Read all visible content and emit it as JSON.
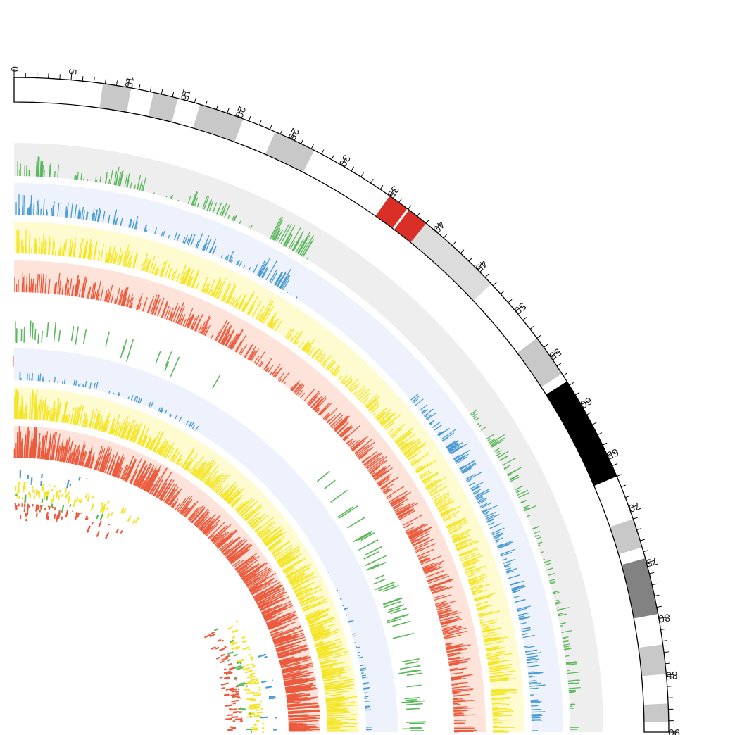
{
  "chart_data": {
    "type": "circos",
    "axis": {
      "start": 0,
      "end": 90,
      "major_step": 5,
      "minor_step": 1,
      "tick_labels": [
        "0",
        "5",
        "10",
        "15",
        "20",
        "25",
        "30",
        "35",
        "40",
        "45",
        "50",
        "55",
        "60",
        "65",
        "70",
        "75",
        "80",
        "85",
        "90"
      ]
    },
    "ideogram_bands": [
      {
        "start": 0.0,
        "end": 7.8,
        "stain": "gneg",
        "color": "#ffffff"
      },
      {
        "start": 7.8,
        "end": 10.3,
        "stain": "gpos25",
        "color": "#c8c8c8"
      },
      {
        "start": 10.3,
        "end": 12.3,
        "stain": "gneg",
        "color": "#ffffff"
      },
      {
        "start": 12.3,
        "end": 14.5,
        "stain": "gpos25",
        "color": "#c8c8c8"
      },
      {
        "start": 14.5,
        "end": 16.5,
        "stain": "gneg",
        "color": "#ffffff"
      },
      {
        "start": 16.5,
        "end": 20.5,
        "stain": "gpos25",
        "color": "#c8c8c8"
      },
      {
        "start": 20.5,
        "end": 23.5,
        "stain": "gneg",
        "color": "#ffffff"
      },
      {
        "start": 23.5,
        "end": 27.3,
        "stain": "gpos25",
        "color": "#c8c8c8"
      },
      {
        "start": 27.3,
        "end": 35.0,
        "stain": "gneg",
        "color": "#ffffff"
      },
      {
        "start": 35.0,
        "end": 37.0,
        "stain": "acen",
        "color": "#d92f27"
      },
      {
        "start": 37.0,
        "end": 39.0,
        "stain": "acen",
        "color": "#d92f27"
      },
      {
        "start": 39.0,
        "end": 46.8,
        "stain": "gvar",
        "color": "#dcdcdc"
      },
      {
        "start": 46.8,
        "end": 53.0,
        "stain": "gneg",
        "color": "#ffffff"
      },
      {
        "start": 53.0,
        "end": 56.8,
        "stain": "gpos25",
        "color": "#c8c8c8"
      },
      {
        "start": 56.8,
        "end": 57.6,
        "stain": "gneg",
        "color": "#ffffff"
      },
      {
        "start": 57.6,
        "end": 67.0,
        "stain": "gpos100",
        "color": "#000000"
      },
      {
        "start": 67.0,
        "end": 71.0,
        "stain": "gneg",
        "color": "#ffffff"
      },
      {
        "start": 71.0,
        "end": 73.6,
        "stain": "gpos25",
        "color": "#c8c8c8"
      },
      {
        "start": 73.6,
        "end": 74.6,
        "stain": "gneg",
        "color": "#ffffff"
      },
      {
        "start": 74.6,
        "end": 79.6,
        "stain": "gpos75",
        "color": "#828282"
      },
      {
        "start": 79.6,
        "end": 82.3,
        "stain": "gneg",
        "color": "#ffffff"
      },
      {
        "start": 82.3,
        "end": 84.9,
        "stain": "gpos25",
        "color": "#c8c8c8"
      },
      {
        "start": 84.9,
        "end": 87.5,
        "stain": "gneg",
        "color": "#ffffff"
      },
      {
        "start": 87.5,
        "end": 89.1,
        "stain": "gpos25",
        "color": "#c8c8c8"
      },
      {
        "start": 89.1,
        "end": 90.0,
        "stain": "gneg",
        "color": "#ffffff"
      }
    ],
    "tracks": [
      {
        "kind": "histogram",
        "color": "#5cb85c",
        "background": "#eeeeee",
        "inner": 790,
        "outer": 837,
        "density": [
          0.5,
          0.2,
          0.45,
          0.1,
          0.35,
          0.15,
          0.6,
          0.05,
          0.0,
          0.0,
          0.0,
          0.0,
          0.2,
          0.45,
          0.3,
          0.2,
          0.2,
          0.3,
          0.3,
          0.2
        ]
      },
      {
        "kind": "histogram",
        "color": "#4a9bd1",
        "background": "#edf2fc",
        "inner": 735,
        "outer": 780,
        "density": [
          0.5,
          0.4,
          0.4,
          0.2,
          0.4,
          0.3,
          0.55,
          0.05,
          0.0,
          0.0,
          0.0,
          0.3,
          0.5,
          0.45,
          0.4,
          0.4,
          0.35,
          0.3,
          0.4,
          0.35
        ]
      },
      {
        "kind": "histogram",
        "color": "#f5e52a",
        "background": "#fefbd0",
        "inner": 680,
        "outer": 725,
        "density": [
          0.6,
          0.5,
          0.55,
          0.45,
          0.5,
          0.55,
          0.6,
          0.4,
          0.45,
          0.4,
          0.45,
          0.55,
          0.6,
          0.55,
          0.6,
          0.6,
          0.55,
          0.6,
          0.65,
          0.55
        ]
      },
      {
        "kind": "histogram",
        "color": "#ec5b3e",
        "background": "#fde3da",
        "inner": 625,
        "outer": 670,
        "density": [
          0.5,
          0.55,
          0.5,
          0.5,
          0.55,
          0.5,
          0.6,
          0.4,
          0.35,
          0.45,
          0.55,
          0.6,
          0.55,
          0.6,
          0.65,
          0.6,
          0.6,
          0.65,
          0.6,
          0.6
        ]
      },
      {
        "kind": "segments",
        "color": "#5cb85c",
        "inner": 550,
        "outer": 585,
        "density": [
          0.3,
          0.15,
          0.05,
          0.1,
          0.05,
          0.08,
          0.02,
          0.0,
          0.0,
          0.0,
          0.0,
          0.05,
          0.1,
          0.2,
          0.25,
          0.25,
          0.3,
          0.1,
          0.2,
          0.3
        ]
      },
      {
        "kind": "segments",
        "color": "#ec5b3e",
        "inner": 510,
        "outer": 535,
        "density": [
          0.05,
          0.0,
          0.0,
          0.0,
          0.0,
          0.0,
          0.0,
          0.0,
          0.0,
          0.0,
          0.0,
          0.0,
          0.0,
          0.02,
          0.05,
          0.05,
          0.1,
          0.2,
          0.15,
          0.05
        ]
      },
      {
        "kind": "histogram",
        "color": "#4a9bd1",
        "background": "#edf2fc",
        "inner": 500,
        "outer": 545,
        "density": [
          0.2,
          0.15,
          0.2,
          0.1,
          0.15,
          0.2,
          0.15,
          0.05,
          0.0,
          0.0,
          0.0,
          0.0,
          0.0,
          0.0,
          0.05,
          0.15,
          0.1,
          0.15,
          0.2,
          0.15
        ]
      },
      {
        "kind": "histogram",
        "color": "#f5e52a",
        "background": "#fefbd0",
        "inner": 445,
        "outer": 490,
        "density": [
          0.75,
          0.6,
          0.55,
          0.5,
          0.6,
          0.55,
          0.5,
          0.55,
          0.6,
          0.55,
          0.6,
          0.6,
          0.65,
          0.7,
          0.65,
          0.7,
          0.75,
          0.7,
          0.8,
          0.75
        ]
      },
      {
        "kind": "histogram",
        "color": "#ec5b3e",
        "background": "#fde3da",
        "inner": 390,
        "outer": 435,
        "density": [
          0.8,
          0.7,
          0.65,
          0.6,
          0.65,
          0.7,
          0.75,
          0.6,
          0.55,
          0.6,
          0.65,
          0.7,
          0.75,
          0.8,
          0.85,
          0.8,
          0.85,
          0.9,
          0.85,
          0.85
        ]
      },
      {
        "kind": "scatter",
        "color": "#4a9bd1",
        "inner": 350,
        "outer": 375,
        "density": [
          0.1,
          0.05,
          0.05,
          0.05,
          0.0,
          0.0,
          0.0,
          0.0,
          0.0,
          0.0,
          0.0,
          0.0,
          0.0,
          0.0,
          0.0,
          0.0,
          0.05,
          0.1,
          0.1,
          0.1
        ]
      },
      {
        "kind": "scatter",
        "color": "#f5e52a",
        "inner": 330,
        "outer": 355,
        "density": [
          0.6,
          0.5,
          0.4,
          0.3,
          0.3,
          0.2,
          0.1,
          0.0,
          0.0,
          0.0,
          0.0,
          0.0,
          0.0,
          0.0,
          0.2,
          0.4,
          0.6,
          0.7,
          0.6,
          0.5
        ]
      },
      {
        "kind": "scatter",
        "color": "#5cb85c",
        "inner": 318,
        "outer": 338,
        "density": [
          0.1,
          0.1,
          0.05,
          0.05,
          0.05,
          0.0,
          0.0,
          0.0,
          0.0,
          0.0,
          0.0,
          0.0,
          0.0,
          0.0,
          0.05,
          0.1,
          0.2,
          0.15,
          0.1,
          0.1
        ]
      },
      {
        "kind": "scatter",
        "color": "#ec5b3e",
        "inner": 300,
        "outer": 325,
        "density": [
          0.4,
          0.4,
          0.3,
          0.2,
          0.2,
          0.1,
          0.05,
          0.0,
          0.0,
          0.0,
          0.0,
          0.0,
          0.0,
          0.0,
          0.2,
          0.3,
          0.4,
          0.5,
          0.45,
          0.4
        ]
      }
    ]
  }
}
